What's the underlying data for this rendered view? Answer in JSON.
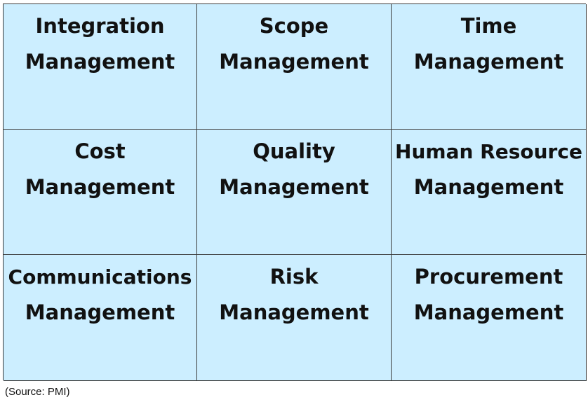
{
  "cells": [
    {
      "line1": "Integration",
      "line2": "Management"
    },
    {
      "line1": "Scope",
      "line2": "Management"
    },
    {
      "line1": "Time",
      "line2": "Management"
    },
    {
      "line1": "Cost",
      "line2": "Management"
    },
    {
      "line1": "Quality",
      "line2": "Management"
    },
    {
      "line1": "Human Resource",
      "line2": "Management"
    },
    {
      "line1": "Communications",
      "line2": "Management"
    },
    {
      "line1": "Risk",
      "line2": "Management"
    },
    {
      "line1": "Procurement",
      "line2": "Management"
    }
  ],
  "source": "(Source: PMI)",
  "colors": {
    "cell_fill": "#cceeff",
    "border": "#3a3a3a",
    "text": "#111111"
  }
}
